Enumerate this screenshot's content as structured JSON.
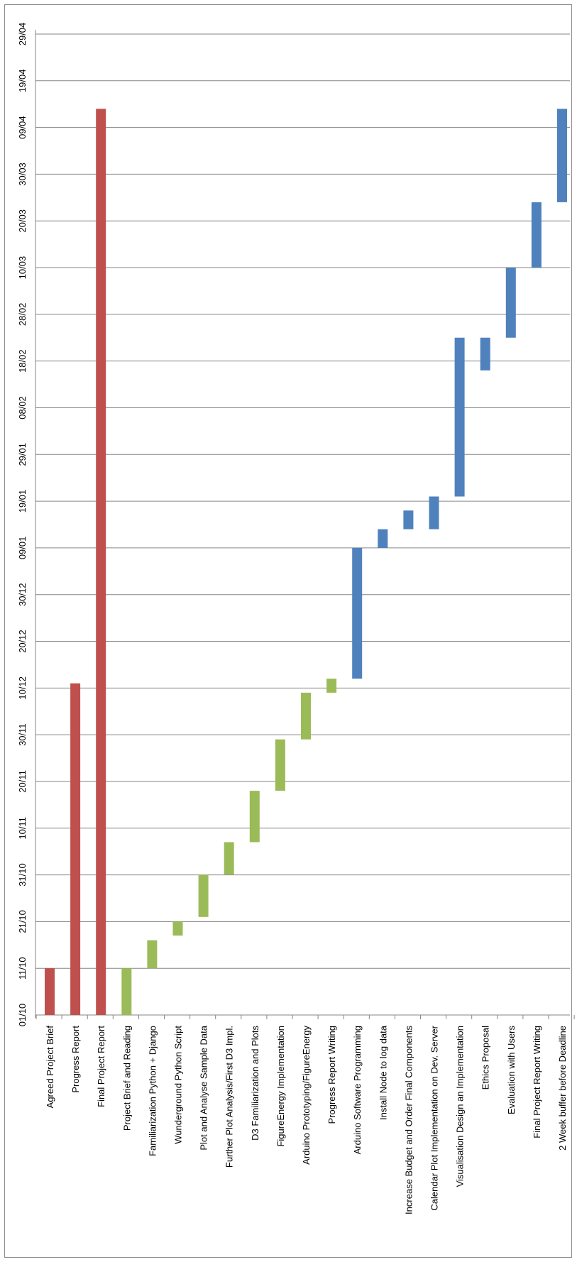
{
  "chart_data": {
    "type": "gantt",
    "title": "",
    "ylabel": "",
    "xlabel": "",
    "grid": true,
    "date_ticks": [
      "01/10",
      "11/10",
      "21/10",
      "31/10",
      "10/11",
      "20/11",
      "30/11",
      "10/12",
      "20/12",
      "30/12",
      "09/01",
      "19/01",
      "29/01",
      "08/02",
      "18/02",
      "28/02",
      "10/03",
      "20/03",
      "30/03",
      "09/04",
      "19/04",
      "29/04"
    ],
    "colors": {
      "milestone": "#C0504D",
      "phase1": "#9BBB59",
      "phase2": "#4F81BD",
      "grid": "#868686"
    },
    "tasks": [
      {
        "name": "Agreed Project Brief",
        "group": "milestone",
        "start": "01/10",
        "end": "11/10"
      },
      {
        "name": "Progress Report",
        "group": "milestone",
        "start": "01/10",
        "end": "11/12"
      },
      {
        "name": "Final Project Report",
        "group": "milestone",
        "start": "01/10",
        "end": "13/04"
      },
      {
        "name": "Project Brief and Reading",
        "group": "phase1",
        "start": "01/10",
        "end": "11/10"
      },
      {
        "name": "Familiarization Python + Django",
        "group": "phase1",
        "start": "11/10",
        "end": "17/10"
      },
      {
        "name": "Wunderground Python Script",
        "group": "phase1",
        "start": "18/10",
        "end": "21/10"
      },
      {
        "name": "Plot and Analyse Sample Data",
        "group": "phase1",
        "start": "22/10",
        "end": "31/10"
      },
      {
        "name": "Further Plot Analysis/First D3 Impl.",
        "group": "phase1",
        "start": "31/10",
        "end": "07/11"
      },
      {
        "name": "D3 Familiarization and Plots",
        "group": "phase1",
        "start": "07/11",
        "end": "18/11"
      },
      {
        "name": "FigureEnergy Implementation",
        "group": "phase1",
        "start": "18/11",
        "end": "29/11"
      },
      {
        "name": "Arduino Prototyping/FigureEnergy",
        "group": "phase1",
        "start": "29/11",
        "end": "09/12"
      },
      {
        "name": "Progress Report Writing",
        "group": "phase1",
        "start": "09/12",
        "end": "12/12"
      },
      {
        "name": "Arduino Software Programming",
        "group": "phase2",
        "start": "12/12",
        "end": "09/01"
      },
      {
        "name": "Install Node to log data",
        "group": "phase2",
        "start": "09/01",
        "end": "13/01"
      },
      {
        "name": "Increase Budget and Order Final Components",
        "group": "phase2",
        "start": "13/01",
        "end": "17/01"
      },
      {
        "name": "Calendar Plot Implementation on Dev. Server",
        "group": "phase2",
        "start": "13/01",
        "end": "20/01"
      },
      {
        "name": "Visualisation Design an Implementation",
        "group": "phase2",
        "start": "20/01",
        "end": "23/02"
      },
      {
        "name": "Ethics Proposal",
        "group": "phase2",
        "start": "16/02",
        "end": "23/02"
      },
      {
        "name": "Evaluation with Users",
        "group": "phase2",
        "start": "23/02",
        "end": "10/03"
      },
      {
        "name": "Final Project Report Writing",
        "group": "phase2",
        "start": "10/03",
        "end": "24/03"
      },
      {
        "name": "2 Week buffer before Deadline",
        "group": "phase2",
        "start": "24/03",
        "end": "13/04"
      }
    ]
  }
}
